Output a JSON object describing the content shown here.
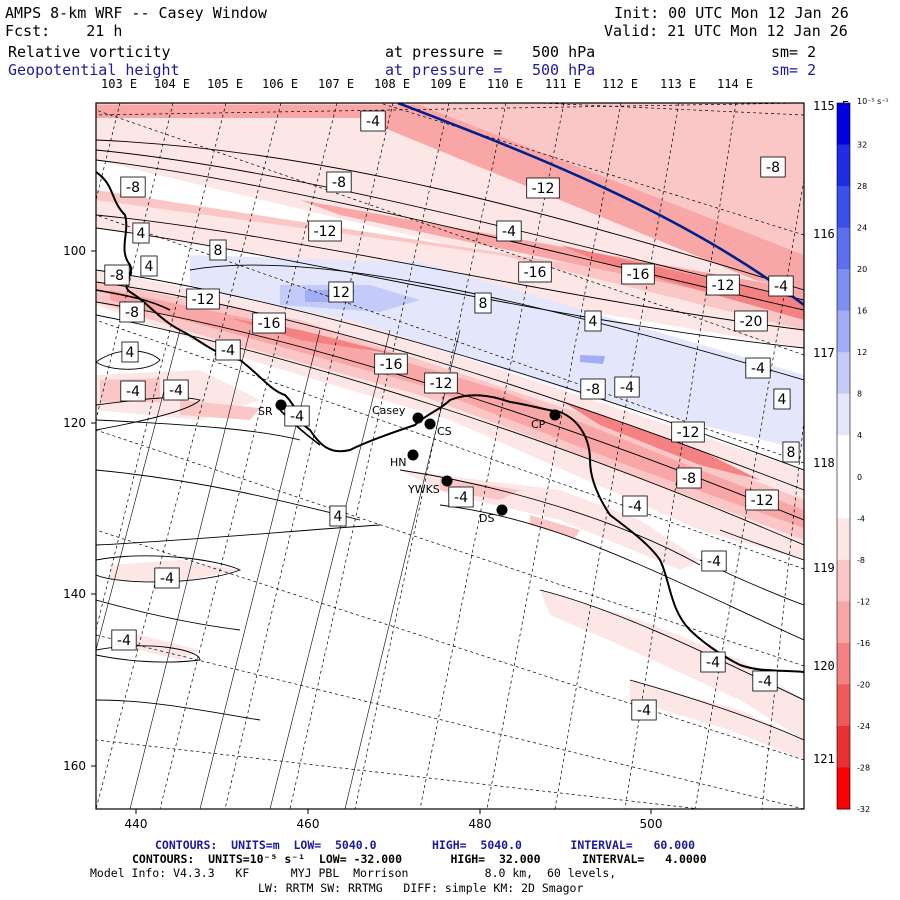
{
  "header": {
    "title_left": "AMPS 8-km WRF -- Casey Window",
    "fcst": "Fcst:    21 h",
    "init": "Init: 00 UTC Mon 12 Jan 26",
    "valid": "Valid: 21 UTC Mon 12 Jan 26",
    "field1": {
      "name": "Relative vorticity",
      "level_label": "at pressure =",
      "level": "500 hPa",
      "sm": "sm= 2"
    },
    "field2": {
      "name": "Geopotential height",
      "level_label": "at pressure =",
      "level": "500 hPa",
      "sm": "sm= 2"
    }
  },
  "axes": {
    "top_lon_labels": [
      "103 E",
      "104 E",
      "105 E",
      "106 E",
      "107 E",
      "108 E",
      "109 E",
      "110 E",
      "111 E",
      "112 E",
      "113 E",
      "114 E"
    ],
    "right_lat_labels": [
      "115 E",
      "116 E",
      "117 E",
      "118 E",
      "119 E",
      "120 E",
      "121 E"
    ],
    "x_ticks": [
      "440",
      "460",
      "480",
      "500"
    ],
    "y_ticks": [
      "100",
      "120",
      "140",
      "160"
    ]
  },
  "colorbar": {
    "unit": "10⁻⁵ s⁻¹",
    "labels": [
      "32",
      "28",
      "24",
      "20",
      "16",
      "12",
      "8",
      "4",
      "0",
      "-4",
      "-8",
      "-12",
      "-16",
      "-20",
      "-24",
      "-28",
      "-32"
    ],
    "colors": [
      "#0000e0",
      "#1f2ee6",
      "#3b4fea",
      "#5c6fee",
      "#7e8ff2",
      "#a1adf5",
      "#c4cbf9",
      "#e4e7fc",
      "#ffffff",
      "#ffffff",
      "#fde6e6",
      "#fbc6c6",
      "#f8a6a6",
      "#f58282",
      "#f05a5a",
      "#ea3030",
      "#ff0000"
    ]
  },
  "stations": [
    {
      "code": "SR"
    },
    {
      "code": "Casey"
    },
    {
      "code": "CS"
    },
    {
      "code": "HN"
    },
    {
      "code": "YWKS"
    },
    {
      "code": "DS"
    },
    {
      "code": "CP"
    }
  ],
  "contour_labels": [
    "-4",
    "-8",
    "-8",
    "-12",
    "-12",
    "-8",
    "-4",
    "4",
    "4",
    "8",
    "-8",
    "-16",
    "-16",
    "-12",
    "-4",
    "-12",
    "12",
    "8",
    "4",
    "-20",
    "-8",
    "-16",
    "4",
    "-4",
    "-4",
    "-4",
    "-16",
    "-12",
    "-8",
    "-4",
    "-4",
    "-4",
    "4",
    "-12",
    "8",
    "-8",
    "-12",
    "-4",
    "-4",
    "4",
    "-4",
    "-4",
    "-4",
    "-4"
  ],
  "footer": {
    "line1": "CONTOURS:  UNITS=m  LOW=  5040.0        HIGH=  5040.0       INTERVAL=   60.000",
    "line2": "CONTOURS:  UNITS=10⁻⁵ s⁻¹  LOW= -32.000       HIGH=  32.000      INTERVAL=   4.0000",
    "line3": "Model Info: V4.3.3   KF      MYJ PBL  Morrison           8.0 km,  60 levels,",
    "line4": "LW: RRTM SW: RRTMG   DIFF: simple KM: 2D Smagor"
  }
}
